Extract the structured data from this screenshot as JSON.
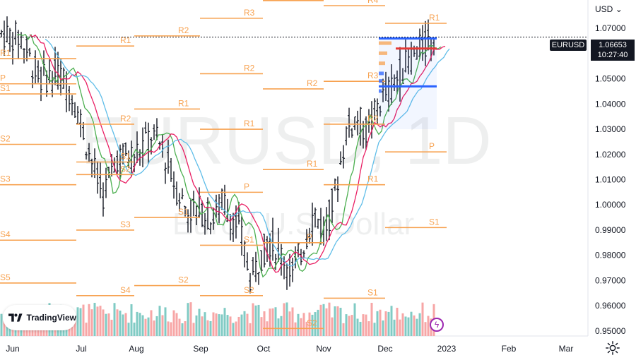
{
  "chart_data": {
    "type": "ohlc",
    "symbol": "EURUSD",
    "timeframe": "1D",
    "watermark_symbol": "EURUSD, 1D",
    "watermark_desc": "Euro / U.S. Dollar",
    "currency": "USD",
    "last_price": "1.06653",
    "countdown": "10:27:40",
    "y_ticks": [
      "1.07000",
      "1.06000",
      "1.05000",
      "1.04000",
      "1.03000",
      "1.02000",
      "1.01000",
      "1.00000",
      "0.99000",
      "0.98000",
      "0.97000",
      "0.96000",
      "0.95000"
    ],
    "ylim": [
      0.948,
      1.079
    ],
    "x_ticks": [
      "Jun",
      "Jul",
      "Aug",
      "Sep",
      "Oct",
      "Nov",
      "Dec",
      "2023",
      "Feb",
      "Mar"
    ],
    "pivot_labels": [
      "R1",
      "R2",
      "R3",
      "R4",
      "P",
      "S1",
      "S2",
      "S3",
      "S4",
      "S5"
    ],
    "ma_colors": [
      "#4caf50",
      "#e91e63",
      "#5fbde8"
    ],
    "pivot_color": "#f7a250",
    "volume_up_color": "#80cbc4",
    "volume_down_color": "#f7a6a6",
    "vpvr_hi_color": "#2962ff",
    "vpvr_poc_color": "#e53935"
  },
  "ui": {
    "brand": "TradingView",
    "currency_selector": "USD",
    "gear_icon": "gear-icon",
    "flash_icon": "flash-icon"
  }
}
